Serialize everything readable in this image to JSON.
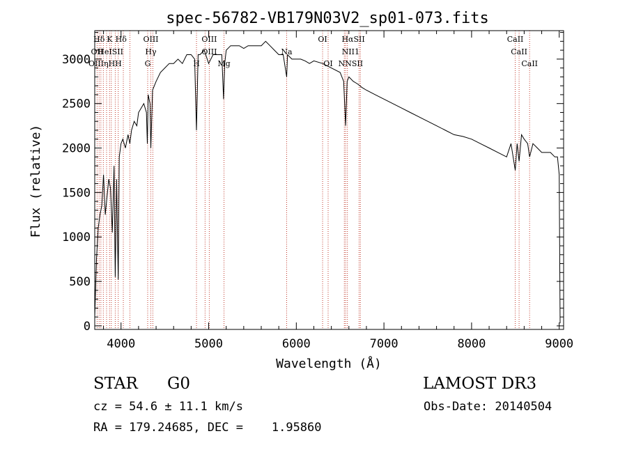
{
  "chart_data": {
    "type": "line",
    "title": "spec-56782-VB179N03V2_sp01-073.fits",
    "xlabel": "Wavelength (Å)",
    "ylabel": "Flux (relative)",
    "xlim": [
      3700,
      9050
    ],
    "ylim": [
      -40,
      3320
    ],
    "xticks": [
      4000,
      5000,
      6000,
      7000,
      8000,
      9000
    ],
    "yticks": [
      0,
      500,
      1000,
      1500,
      2000,
      2500,
      3000
    ],
    "series": [
      {
        "name": "flux",
        "x": [
          3700,
          3720,
          3740,
          3760,
          3780,
          3800,
          3820,
          3840,
          3860,
          3880,
          3900,
          3920,
          3934,
          3950,
          3968,
          3980,
          4000,
          4020,
          4050,
          4080,
          4101,
          4120,
          4150,
          4180,
          4200,
          4230,
          4260,
          4290,
          4300,
          4310,
          4330,
          4340,
          4360,
          4380,
          4400,
          4450,
          4500,
          4550,
          4600,
          4650,
          4700,
          4750,
          4800,
          4840,
          4861,
          4880,
          4900,
          4950,
          5000,
          5050,
          5100,
          5150,
          5170,
          5183,
          5200,
          5250,
          5300,
          5350,
          5400,
          5450,
          5500,
          5550,
          5600,
          5650,
          5700,
          5750,
          5800,
          5850,
          5890,
          5900,
          5950,
          6000,
          6050,
          6100,
          6150,
          6200,
          6300,
          6400,
          6500,
          6540,
          6563,
          6580,
          6600,
          6650,
          6700,
          6750,
          6800,
          6900,
          7000,
          7100,
          7200,
          7300,
          7400,
          7500,
          7600,
          7700,
          7800,
          7900,
          8000,
          8100,
          8200,
          8300,
          8400,
          8450,
          8498,
          8520,
          8542,
          8570,
          8600,
          8640,
          8662,
          8700,
          8750,
          8800,
          8850,
          8900,
          8950,
          8980,
          9000,
          9010
        ],
        "y": [
          100,
          750,
          1100,
          1250,
          1350,
          1700,
          1250,
          1450,
          1650,
          1550,
          1050,
          1800,
          550,
          1650,
          520,
          1900,
          2050,
          2100,
          2000,
          2150,
          2050,
          2200,
          2300,
          2250,
          2400,
          2450,
          2500,
          2400,
          2050,
          2600,
          2500,
          2000,
          2650,
          2700,
          2750,
          2850,
          2900,
          2950,
          2950,
          3000,
          2950,
          3050,
          3050,
          3000,
          2200,
          3050,
          3050,
          3100,
          2950,
          3050,
          3050,
          3050,
          2550,
          2950,
          3100,
          3150,
          3150,
          3150,
          3120,
          3150,
          3150,
          3150,
          3150,
          3200,
          3150,
          3100,
          3050,
          3050,
          2800,
          3050,
          3000,
          3000,
          3000,
          2980,
          2950,
          2980,
          2950,
          2900,
          2850,
          2750,
          2250,
          2750,
          2800,
          2750,
          2720,
          2680,
          2650,
          2600,
          2550,
          2500,
          2450,
          2400,
          2350,
          2300,
          2250,
          2200,
          2150,
          2130,
          2100,
          2050,
          2000,
          1950,
          1900,
          2050,
          1750,
          2050,
          1850,
          2150,
          2100,
          2050,
          1900,
          2050,
          2000,
          1950,
          1950,
          1950,
          1900,
          1900,
          1700,
          30
        ]
      }
    ],
    "lines": [
      {
        "label": "Hδ",
        "x": 3750,
        "row": 0
      },
      {
        "label": "K",
        "x": 3870,
        "row": 0
      },
      {
        "label": "Hδ",
        "x": 4000,
        "row": 0
      },
      {
        "label": "OIII",
        "x": 4340,
        "row": 0
      },
      {
        "label": "OIII",
        "x": 5007,
        "row": 0
      },
      {
        "label": "OI",
        "x": 6300,
        "row": 0
      },
      {
        "label": "HαSII",
        "x": 6650,
        "row": 0
      },
      {
        "label": "CaII",
        "x": 8498,
        "row": 0
      },
      {
        "label": "OII",
        "x": 3727,
        "row": 1
      },
      {
        "label": "HeISII",
        "x": 3880,
        "row": 1
      },
      {
        "label": "Hγ",
        "x": 4340,
        "row": 1
      },
      {
        "label": "OIII",
        "x": 5007,
        "row": 1
      },
      {
        "label": "Na",
        "x": 5890,
        "row": 1
      },
      {
        "label": "NII1",
        "x": 6620,
        "row": 1
      },
      {
        "label": "CaII",
        "x": 8542,
        "row": 1
      },
      {
        "label": "OIIIηH",
        "x": 3780,
        "row": 2
      },
      {
        "label": "H",
        "x": 3970,
        "row": 2
      },
      {
        "label": "G",
        "x": 4304,
        "row": 2
      },
      {
        "label": "H",
        "x": 4861,
        "row": 2
      },
      {
        "label": "Mg",
        "x": 5175,
        "row": 2
      },
      {
        "label": "OI",
        "x": 6363,
        "row": 2
      },
      {
        "label": "NNSII",
        "x": 6620,
        "row": 2
      },
      {
        "label": "CaII",
        "x": 8662,
        "row": 2
      }
    ],
    "line_markers_x": [
      3727,
      3750,
      3770,
      3798,
      3835,
      3869,
      3889,
      3934,
      3968,
      4026,
      4101,
      4304,
      4340,
      4363,
      4861,
      4959,
      5007,
      5175,
      5890,
      6300,
      6363,
      6548,
      6563,
      6583,
      6716,
      6731,
      8498,
      8542,
      8662
    ]
  },
  "info": {
    "object_class": "STAR",
    "subclass": "G0",
    "survey": "LAMOST DR3",
    "redshift_text": "cz = 54.6 ± 11.1 km/s",
    "obs_date": "Obs-Date: 20140504",
    "coords": "RA = 179.24685, DEC =    1.95860"
  }
}
